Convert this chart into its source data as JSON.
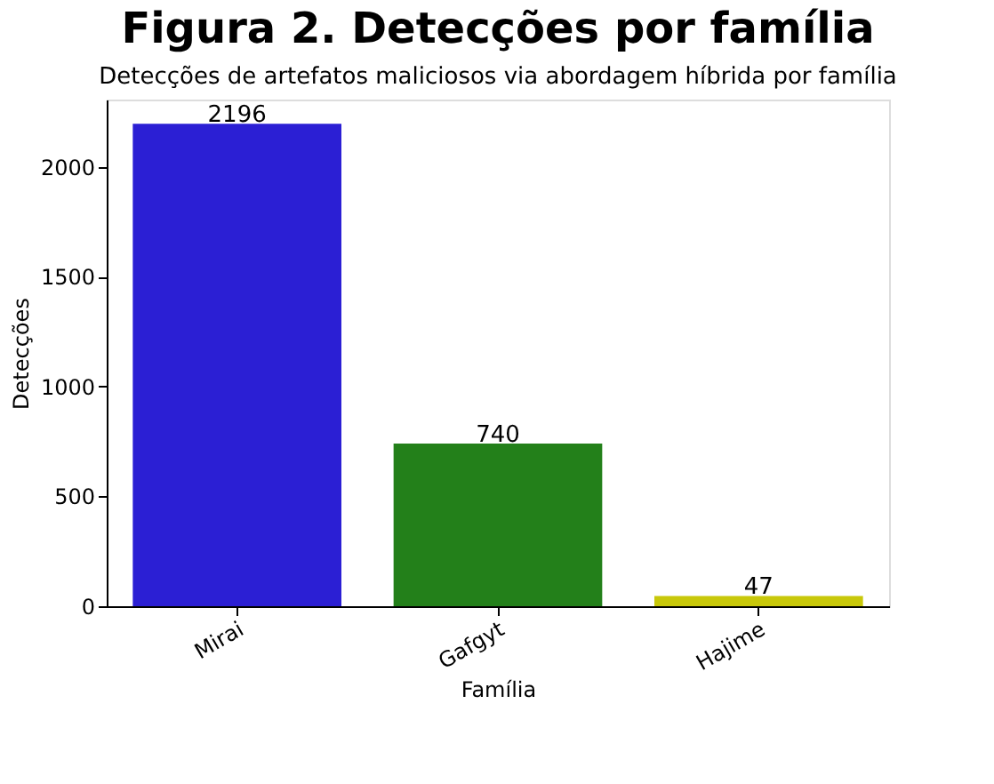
{
  "chart_data": {
    "type": "bar",
    "title": "Figura 2. Detecções por família",
    "subtitle": "Detecções de artefatos maliciosos via abordagem híbrida por família",
    "xlabel": "Família",
    "ylabel": "Detecções",
    "categories": [
      "Mirai",
      "Gafgyt",
      "Hajime"
    ],
    "values": [
      2196,
      740,
      47
    ],
    "colors": [
      "#2b1fd4",
      "#23801a",
      "#c8c80a"
    ],
    "ylim": [
      0,
      2306
    ],
    "yticks": [
      0,
      500,
      1000,
      1500,
      2000
    ],
    "data_labels": true,
    "grid": false
  }
}
